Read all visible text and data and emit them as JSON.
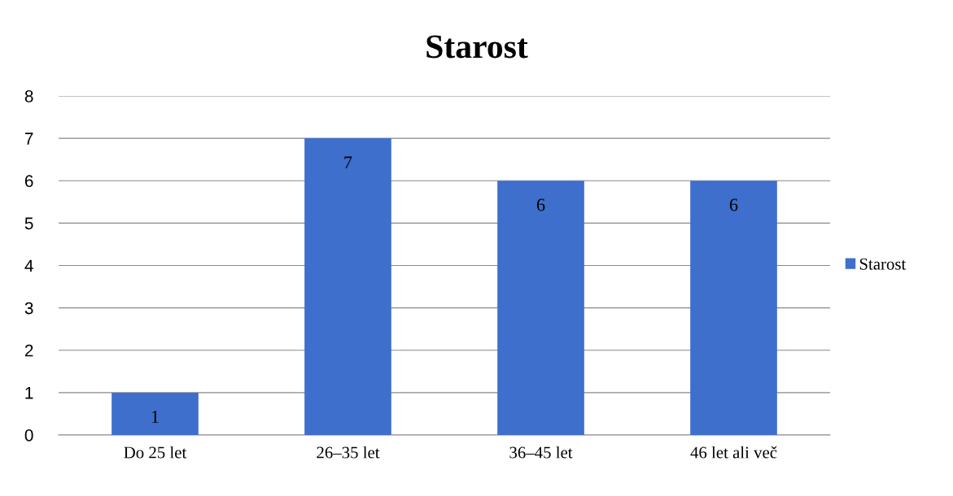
{
  "chart_data": {
    "type": "bar",
    "title": "Starost",
    "categories": [
      "Do 25 let",
      "26–35 let",
      "36–45 let",
      "46 let ali več"
    ],
    "series": [
      {
        "name": "Starost",
        "color": "#3f6fcc",
        "values": [
          1,
          7,
          6,
          6
        ]
      }
    ],
    "ylim": [
      0,
      8
    ],
    "yticks": [
      0,
      1,
      2,
      3,
      4,
      5,
      6,
      7,
      8
    ],
    "grid": "y",
    "legend": "right",
    "data_labels": true
  }
}
